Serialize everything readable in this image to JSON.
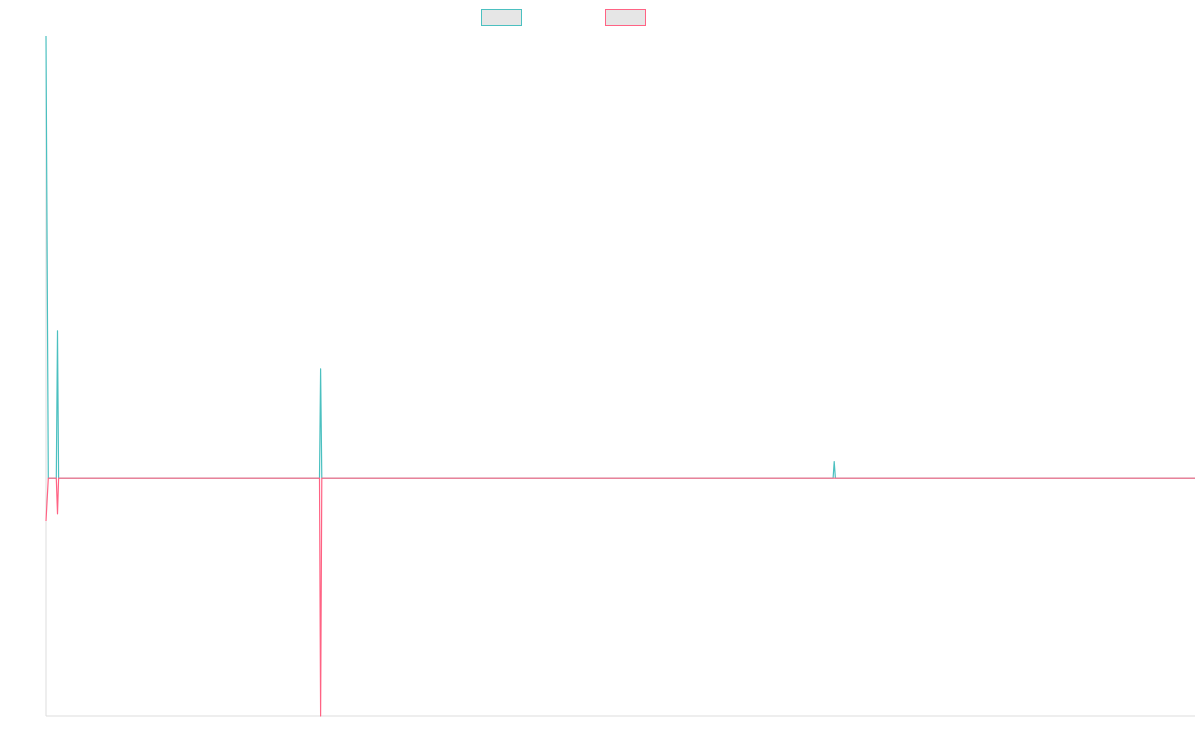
{
  "legend": {
    "placement": "top-center",
    "entries": [
      {
        "name": "",
        "color": "#4bc0c0",
        "fill": "#e6e6e6"
      },
      {
        "name": "",
        "color": "#ff6384",
        "fill": "#e6e6e6"
      }
    ]
  },
  "chart_data": {
    "type": "line",
    "title": "",
    "xlabel": "",
    "ylabel": "",
    "grid": false,
    "legend_placement": "top-center",
    "xlim": [
      0,
      1000
    ],
    "ylim": [
      -100,
      186
    ],
    "series": [
      {
        "color": "#4bc0c0",
        "points": [
          [
            0,
            186
          ],
          [
            2,
            0
          ],
          [
            9,
            0
          ],
          [
            10,
            62
          ],
          [
            11,
            0
          ],
          [
            238,
            0
          ],
          [
            239,
            46
          ],
          [
            240,
            0
          ],
          [
            685,
            0
          ],
          [
            686,
            7
          ],
          [
            687,
            0
          ],
          [
            1000,
            0
          ]
        ]
      },
      {
        "color": "#ff6384",
        "points": [
          [
            0,
            -18
          ],
          [
            2,
            0
          ],
          [
            9,
            0
          ],
          [
            10,
            -15
          ],
          [
            11,
            0
          ],
          [
            238,
            0
          ],
          [
            239,
            -100
          ],
          [
            240,
            0
          ],
          [
            685,
            0
          ],
          [
            686,
            0
          ],
          [
            687,
            0
          ],
          [
            1000,
            0
          ]
        ]
      }
    ]
  }
}
